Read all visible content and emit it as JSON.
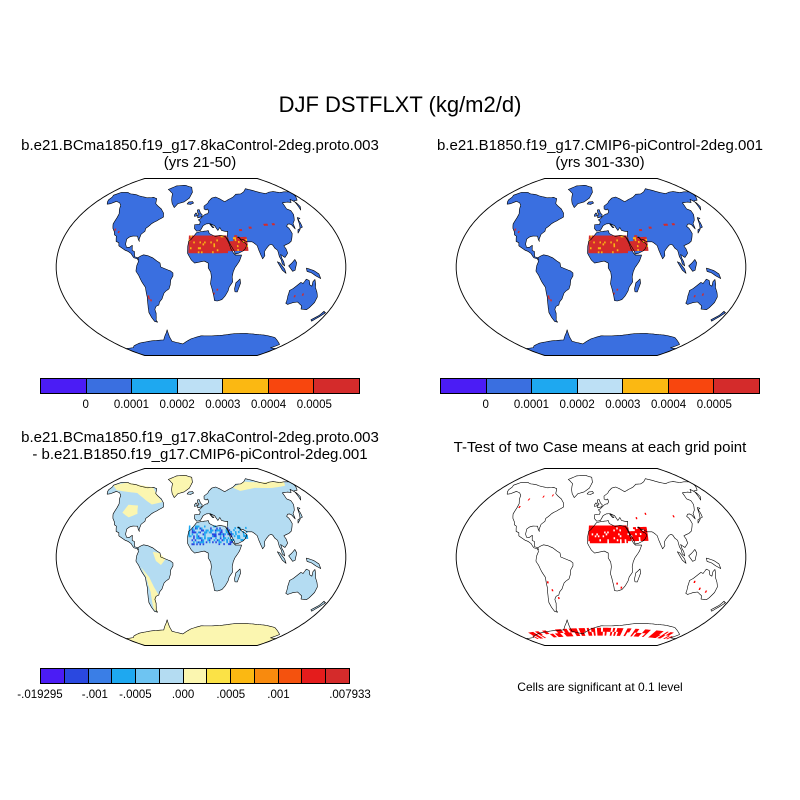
{
  "figure": {
    "title": "DJF DSTFLXT (kg/m2/d)"
  },
  "panels": {
    "p1": {
      "line1": "b.e21.BCma1850.f19_g17.8kaControl-2deg.proto.003",
      "line2": "(yrs 21-50)"
    },
    "p2": {
      "line1": "b.e21.B1850.f19_g17.CMIP6-piControl-2deg.001",
      "line2": "(yrs 301-330)"
    },
    "p3": {
      "line1": "b.e21.BCma1850.f19_g17.8kaControl-2deg.proto.003",
      "line2": "- b.e21.B1850.f19_g17.CMIP6-piControl-2deg.001"
    },
    "p4": {
      "line1": "T-Test of two Case means at each grid point",
      "note": "Cells are significant at 0.1 level"
    }
  },
  "colorbars": {
    "top": {
      "colors": [
        "#4b1cf5",
        "#3a6fe0",
        "#1ea8f0",
        "#bde0f5",
        "#fbb812",
        "#f8460e",
        "#d42b2b"
      ],
      "labels": [
        "0",
        "0.0001",
        "0.0002",
        "0.0003",
        "0.0004",
        "0.0005"
      ]
    },
    "diff": {
      "colors": [
        "#4b1cf5",
        "#2a48e0",
        "#3a7ee6",
        "#1ea8f0",
        "#6ec4f2",
        "#b4dcf2",
        "#fbf6b0",
        "#fbe246",
        "#fbb812",
        "#f88a0e",
        "#f4520e",
        "#e41c1c",
        "#d42b2b"
      ],
      "labels": [
        "-.019295",
        "-.001",
        "-.0005",
        ".000",
        ".0005",
        ".001",
        ".007933"
      ]
    }
  },
  "map_colors": {
    "ocean": "#ffffff",
    "land_low": "#3a6fe0",
    "dust_high": "#d42b2b",
    "dust_mid": "#fbb812",
    "dust_light": "#1ea8f0",
    "diff_neutral_pos": "#fbf6b0",
    "diff_neutral_neg": "#b4dcf2",
    "diff_strong_neg": "#2a48e0",
    "signif": "#ff0000",
    "coast": "#000000"
  }
}
